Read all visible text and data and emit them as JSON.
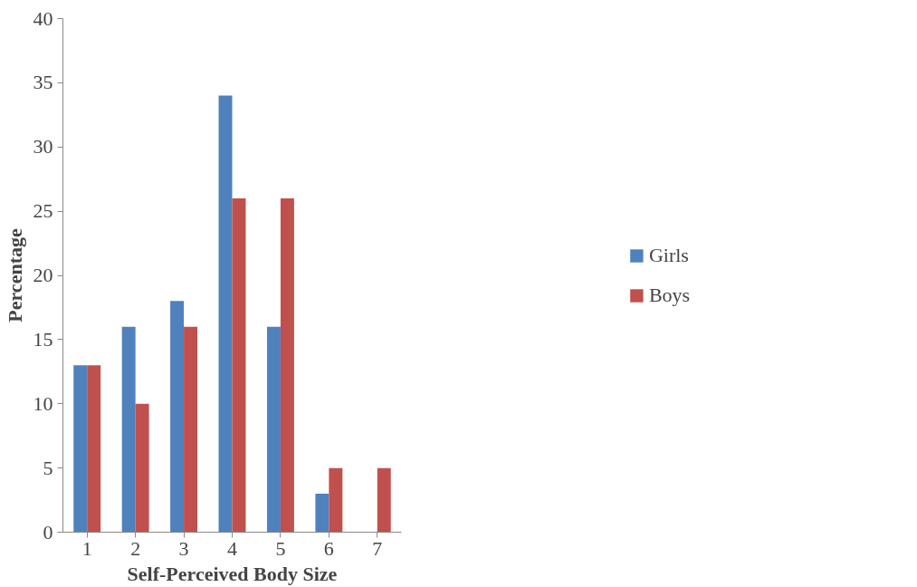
{
  "chart_data": {
    "type": "bar",
    "xlabel": "Self-Perceived Body Size",
    "ylabel": "Percentage",
    "categories": [
      "1",
      "2",
      "3",
      "4",
      "5",
      "6",
      "7"
    ],
    "series": [
      {
        "name": "Girls",
        "color": "#4f81bd",
        "values": [
          13,
          16,
          18,
          34,
          16,
          3,
          0
        ]
      },
      {
        "name": "Boys",
        "color": "#c0504d",
        "values": [
          13,
          10,
          16,
          26,
          26,
          5,
          5
        ]
      }
    ],
    "ylim": [
      0,
      40
    ],
    "yticks": [
      0,
      5,
      10,
      15,
      20,
      25,
      30,
      35,
      40
    ],
    "grid": false,
    "legend": "right"
  }
}
